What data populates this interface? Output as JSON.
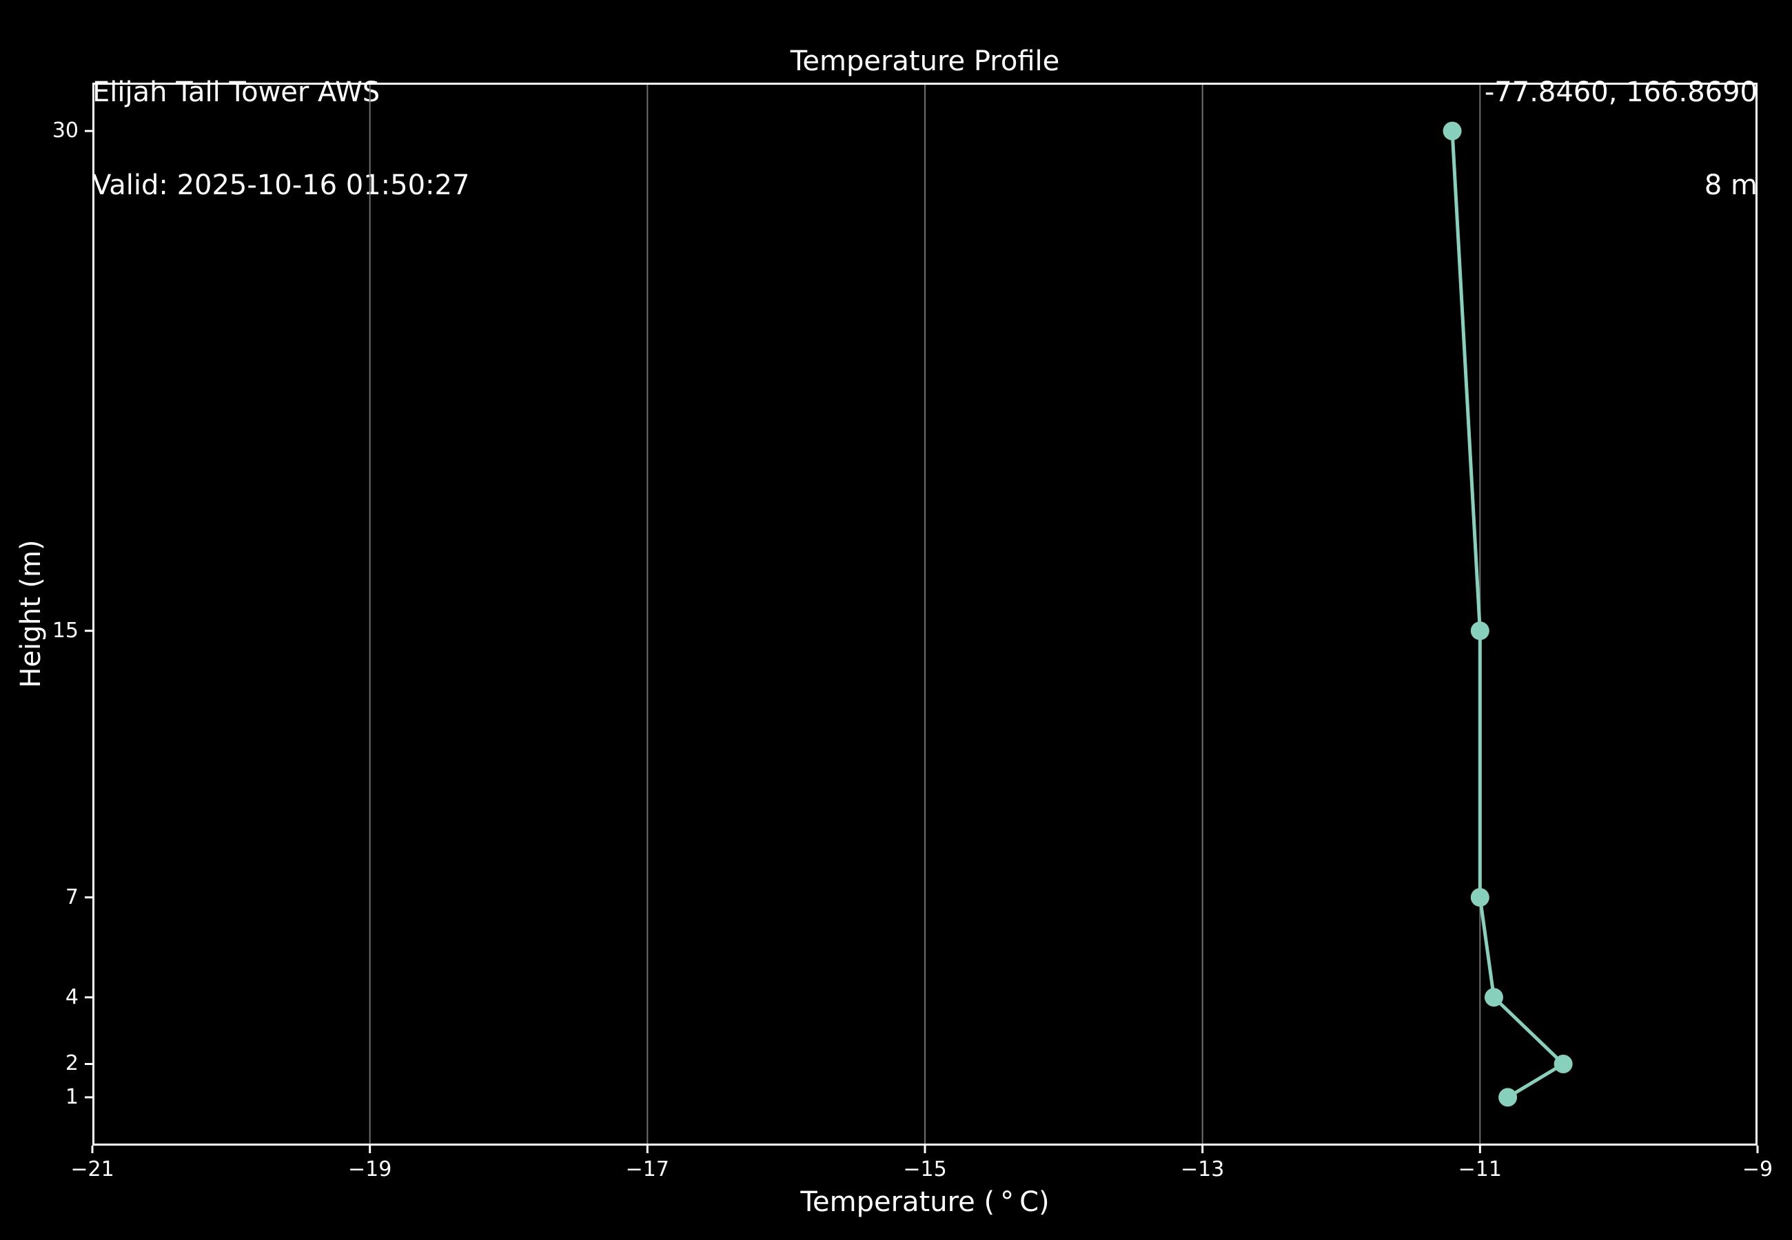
{
  "header": {
    "station_name": "Elijah Tall Tower AWS",
    "valid_time": "Valid: 2025-10-16 01:50:27",
    "title": "Temperature Profile",
    "coordinates": "-77.8460, 166.8690",
    "elevation": "8 m"
  },
  "chart_data": {
    "type": "line",
    "title": "Temperature Profile",
    "xlabel": "Temperature ( ° C)",
    "ylabel": "Height (m)",
    "xlim": [
      -21,
      -9
    ],
    "ylim": [
      -0.45,
      31.45
    ],
    "x_ticks": [
      -21,
      -19,
      -17,
      -15,
      -13,
      -11,
      -9
    ],
    "x_tick_labels": [
      "−21",
      "−19",
      "−17",
      "−15",
      "−13",
      "−11",
      "−9"
    ],
    "y_ticks": [
      1,
      2,
      4,
      7,
      15,
      30
    ],
    "y_tick_labels": [
      "1",
      "2",
      "4",
      "7",
      "15",
      "30"
    ],
    "grid_axis": "x",
    "legend": "none",
    "series": [
      {
        "name": "temperature-profile",
        "points": [
          {
            "height_m": 1,
            "temp_c": -10.8
          },
          {
            "height_m": 2,
            "temp_c": -10.4
          },
          {
            "height_m": 4,
            "temp_c": -10.9
          },
          {
            "height_m": 7,
            "temp_c": -11.0
          },
          {
            "height_m": 15,
            "temp_c": -11.0
          },
          {
            "height_m": 30,
            "temp_c": -11.2
          }
        ]
      }
    ]
  },
  "colors": {
    "background": "#000000",
    "foreground": "#ffffff",
    "grid": "#6f6f6f",
    "series": "#87d1bc"
  }
}
